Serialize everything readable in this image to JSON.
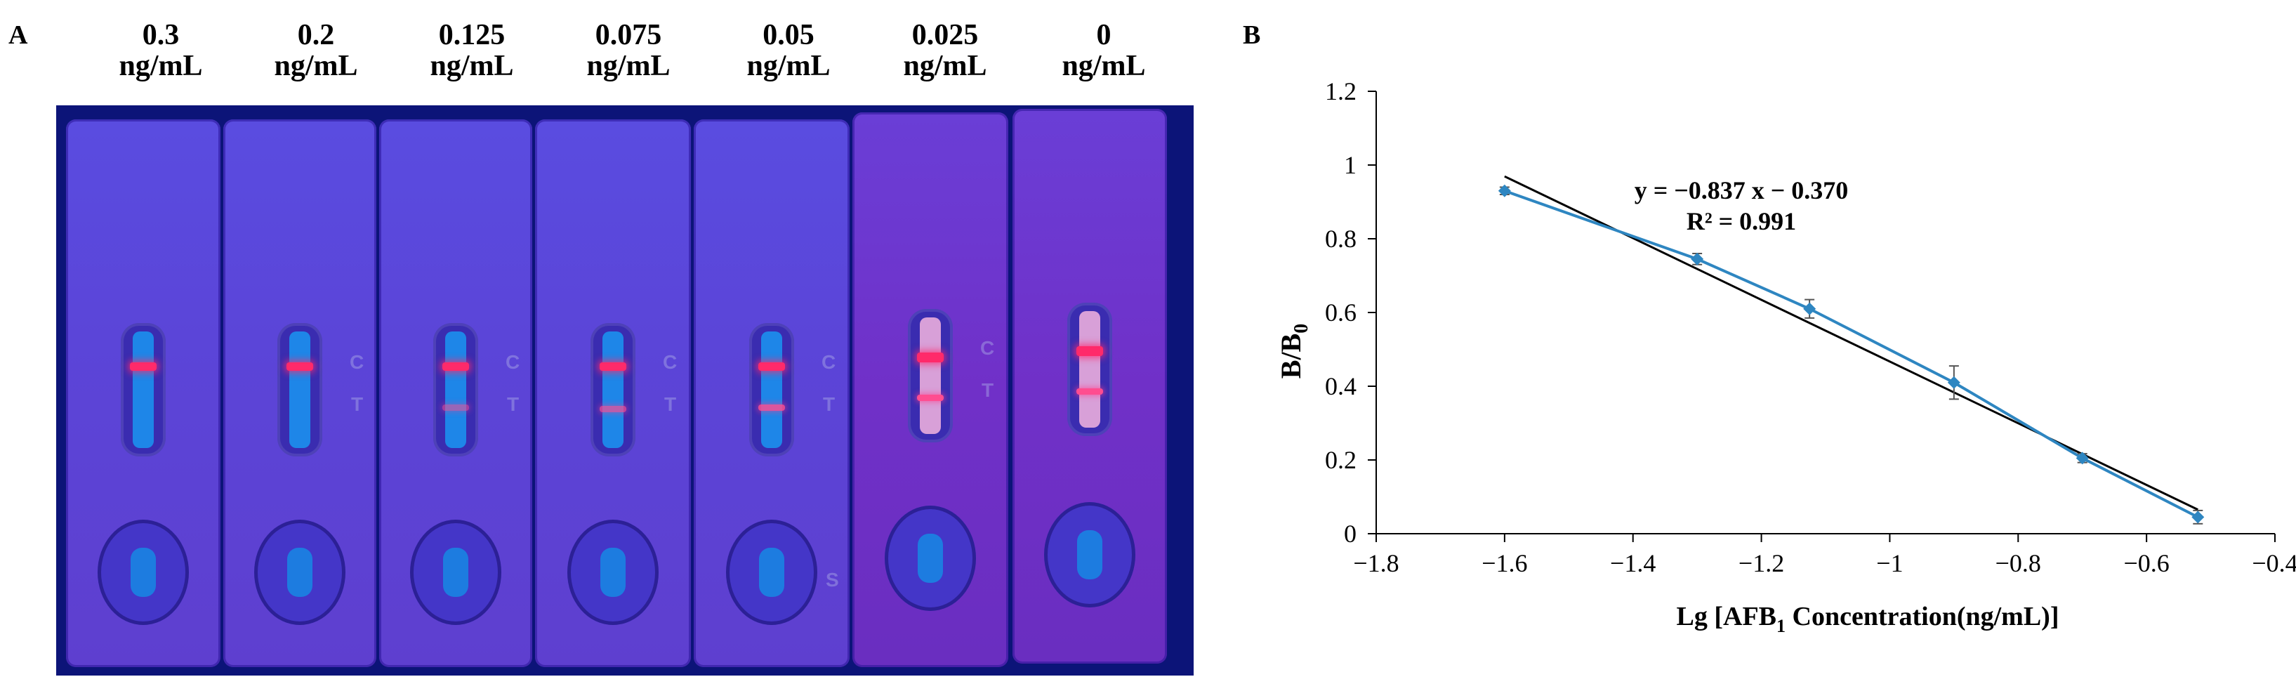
{
  "panel_a": {
    "letter": "A",
    "concentrations": [
      {
        "value": "0.3",
        "unit": "ng/mL",
        "t_line": false
      },
      {
        "value": "0.2",
        "unit": "ng/mL",
        "t_line": false
      },
      {
        "value": "0.125",
        "unit": "ng/mL",
        "t_line": true
      },
      {
        "value": "0.075",
        "unit": "ng/mL",
        "t_line": true
      },
      {
        "value": "0.05",
        "unit": "ng/mL",
        "t_line": true
      },
      {
        "value": "0.025",
        "unit": "ng/mL",
        "t_line": true
      },
      {
        "value": "0",
        "unit": "ng/mL",
        "t_line": true
      }
    ],
    "strip_letters": {
      "c": "C",
      "t": "T",
      "s": "S"
    }
  },
  "panel_b": {
    "letter": "B"
  },
  "chart_data": {
    "type": "scatter",
    "title": "",
    "xlabel_parts": {
      "prefix": "Lg [AFB",
      "sub": "1",
      "suffix": " Concentration(ng/mL)]"
    },
    "ylabel_parts": {
      "prefix": "B/B",
      "sub": "0"
    },
    "xlim": [
      -1.8,
      -0.4
    ],
    "ylim": [
      0,
      1.2
    ],
    "xticks": [
      -1.8,
      -1.6,
      -1.4,
      -1.2,
      -1,
      -0.8,
      -0.6,
      -0.4
    ],
    "xtick_labels": [
      "−1.8",
      "−1.6",
      "−1.4",
      "−1.2",
      "−1",
      "−0.8",
      "−0.6",
      "−0.4"
    ],
    "yticks": [
      0,
      0.2,
      0.4,
      0.6,
      0.8,
      1,
      1.2
    ],
    "ytick_labels": [
      "0",
      "0.2",
      "0.4",
      "0.6",
      "0.8",
      "1",
      "1.2"
    ],
    "grid": false,
    "series": [
      {
        "x": [
          -1.6,
          -1.3,
          -1.125,
          -0.9,
          -0.7,
          -0.52
        ],
        "y": [
          0.93,
          0.745,
          0.61,
          0.41,
          0.205,
          0.045
        ],
        "yerr": [
          0.01,
          0.015,
          0.025,
          0.045,
          0.012,
          0.018
        ],
        "color": "#2e86c1"
      }
    ],
    "trendline": {
      "slope": -0.837,
      "intercept": -0.37,
      "x_range": [
        -1.6,
        -0.52
      ],
      "color": "#000000"
    },
    "equation": "y = −0.837 x − 0.370",
    "r_squared": "R² = 0.991"
  }
}
